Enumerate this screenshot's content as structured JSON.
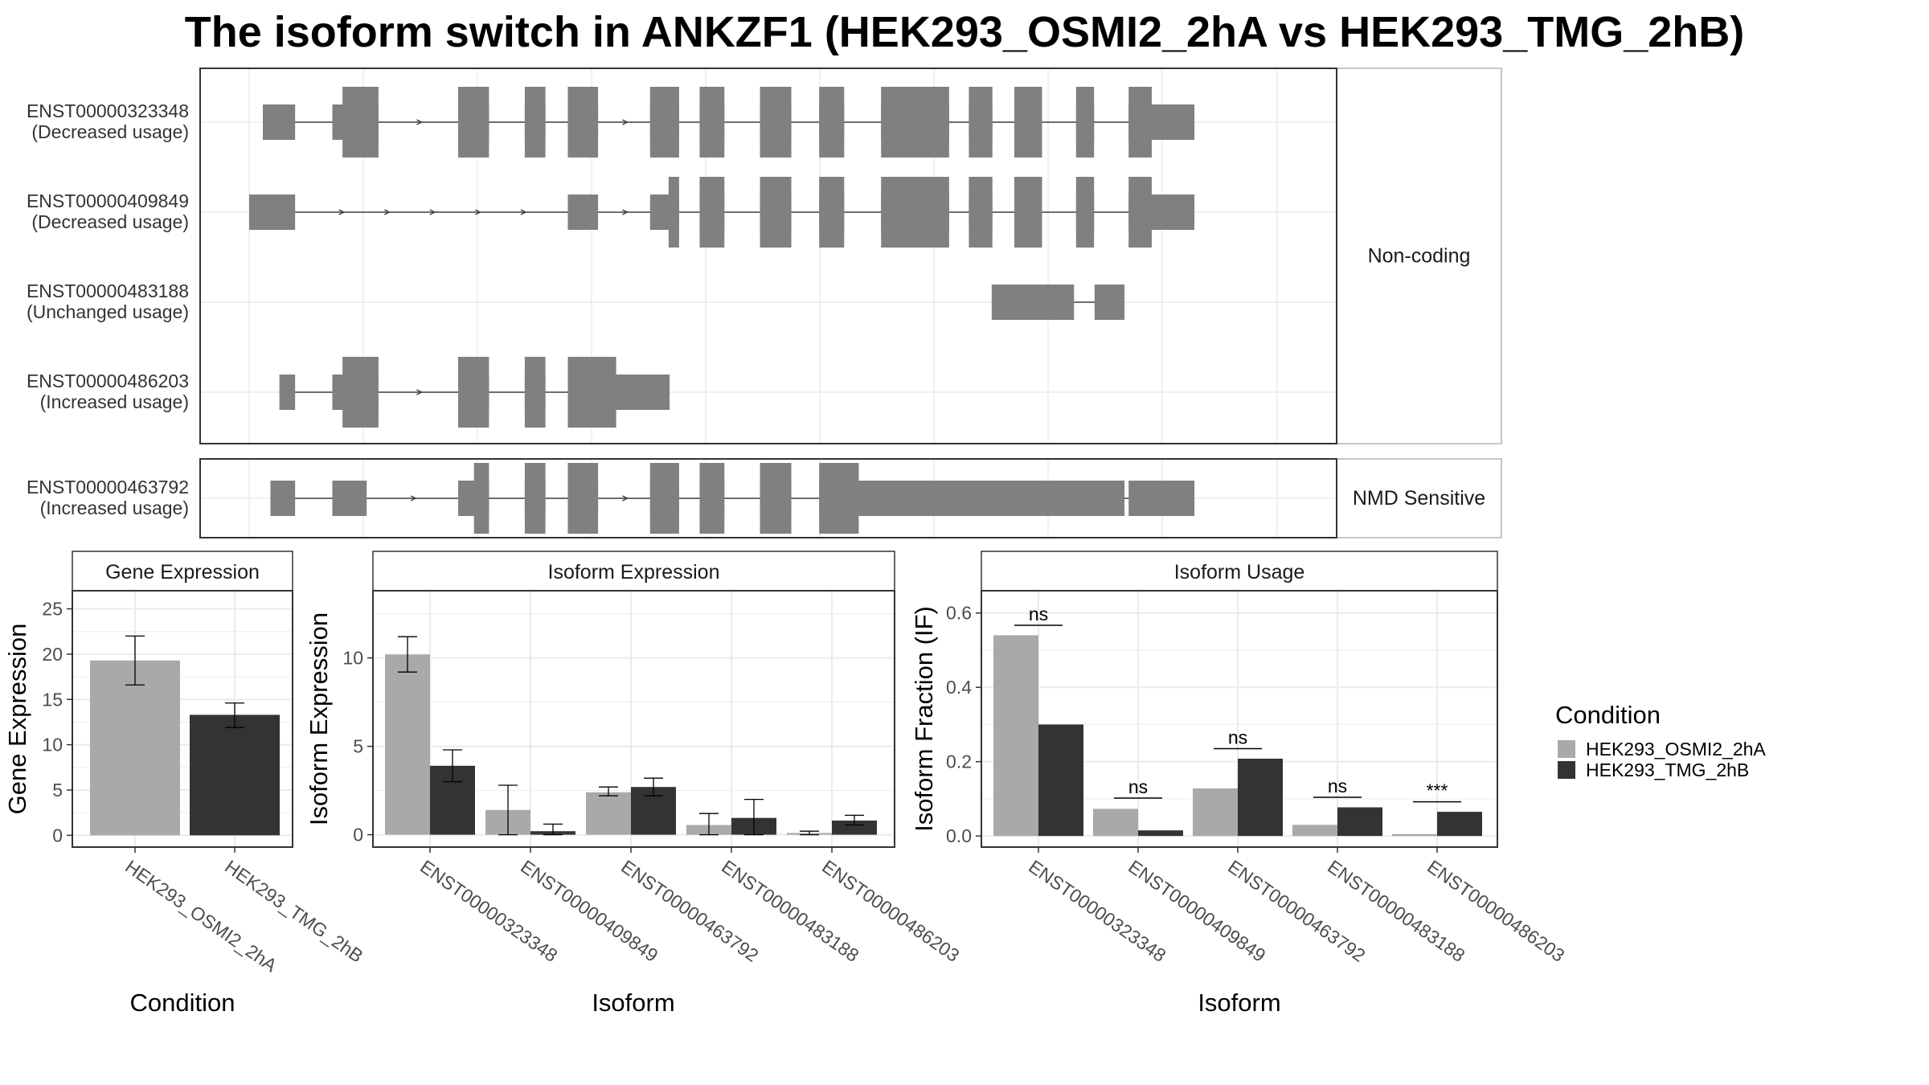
{
  "title": "The isoform switch in ANKZF1 (HEK293_OSMI2_2hA vs HEK293_TMG_2hB)",
  "colors": {
    "exon": "#808080",
    "intron": "#404040",
    "condition_1": "#a9a9a9",
    "condition_2": "#333333",
    "gridline": "#ebebeb",
    "panel_border": "#333333",
    "strip_fill": "#ffffff"
  },
  "structure": {
    "groups": [
      {
        "label": "Non-coding",
        "transcripts": [
          {
            "id": "ENST00000323348",
            "usage": "(Decreased usage)",
            "exons": [
              [
                0.0133,
                0.0447
              ],
              [
                0.0809,
                0.1258
              ],
              [
                0.2033,
                0.2333
              ],
              [
                0.2681,
                0.2882
              ],
              [
                0.31,
                0.3394
              ],
              [
                0.39,
                0.4182
              ],
              [
                0.4382,
                0.4623
              ],
              [
                0.4969,
                0.5274
              ],
              [
                0.5545,
                0.5788
              ],
              [
                0.6147,
                0.6809
              ],
              [
                0.7001,
                0.723
              ],
              [
                0.7443,
                0.7713
              ],
              [
                0.8044,
                0.8219
              ],
              [
                0.8555,
                0.9195
              ]
            ],
            "cds": [
              [
                0.0908,
                0.1258
              ],
              [
                0.2033,
                0.2333
              ],
              [
                0.2681,
                0.2882
              ],
              [
                0.31,
                0.3394
              ],
              [
                0.39,
                0.4182
              ],
              [
                0.4382,
                0.4623
              ],
              [
                0.4969,
                0.5274
              ],
              [
                0.5545,
                0.5788
              ],
              [
                0.6147,
                0.6809
              ],
              [
                0.7001,
                0.723
              ],
              [
                0.7443,
                0.7713
              ],
              [
                0.8044,
                0.8219
              ],
              [
                0.8555,
                0.878
              ]
            ]
          },
          {
            "id": "ENST00000409849",
            "usage": "(Decreased usage)",
            "exons": [
              [
                0.0,
                0.0447
              ],
              [
                0.31,
                0.3394
              ],
              [
                0.39,
                0.4182
              ],
              [
                0.4382,
                0.4623
              ],
              [
                0.4969,
                0.5274
              ],
              [
                0.5545,
                0.5788
              ],
              [
                0.6147,
                0.6809
              ],
              [
                0.7001,
                0.723
              ],
              [
                0.7443,
                0.7713
              ],
              [
                0.8044,
                0.8219
              ],
              [
                0.8555,
                0.9195
              ]
            ],
            "cds": [
              [
                0.408,
                0.4182
              ],
              [
                0.4382,
                0.4623
              ],
              [
                0.4969,
                0.5274
              ],
              [
                0.5545,
                0.5788
              ],
              [
                0.6147,
                0.6809
              ],
              [
                0.7001,
                0.723
              ],
              [
                0.7443,
                0.7713
              ],
              [
                0.8044,
                0.8219
              ],
              [
                0.8555,
                0.878
              ]
            ]
          },
          {
            "id": "ENST00000483188",
            "usage": "(Unchanged usage)",
            "exons": [
              [
                0.7223,
                0.8024
              ],
              [
                0.8224,
                0.8515
              ]
            ],
            "cds": []
          },
          {
            "id": "ENST00000486203",
            "usage": "(Increased usage)",
            "exons": [
              [
                0.0294,
                0.0447
              ],
              [
                0.0809,
                0.1258
              ],
              [
                0.2033,
                0.2333
              ],
              [
                0.2681,
                0.2882
              ],
              [
                0.31,
                0.409
              ]
            ],
            "cds": [
              [
                0.0908,
                0.1258
              ],
              [
                0.2033,
                0.2333
              ],
              [
                0.2681,
                0.2882
              ],
              [
                0.31,
                0.357
              ]
            ]
          }
        ]
      },
      {
        "label": "NMD Sensitive",
        "transcripts": [
          {
            "id": "ENST00000463792",
            "usage": "(Increased usage)",
            "exons": [
              [
                0.0207,
                0.0447
              ],
              [
                0.0809,
                0.1143
              ],
              [
                0.2033,
                0.2333
              ],
              [
                0.2681,
                0.2882
              ],
              [
                0.31,
                0.3394
              ],
              [
                0.39,
                0.4182
              ],
              [
                0.4382,
                0.4623
              ],
              [
                0.4969,
                0.5274
              ],
              [
                0.5545,
                0.8515
              ],
              [
                0.88,
                0.8981
              ],
              [
                0.8555,
                0.9195
              ]
            ],
            "cds": [
              [
                0.2187,
                0.2333
              ],
              [
                0.2681,
                0.2882
              ],
              [
                0.31,
                0.3394
              ],
              [
                0.39,
                0.4182
              ],
              [
                0.4382,
                0.4623
              ],
              [
                0.4969,
                0.5274
              ],
              [
                0.5545,
                0.593
              ]
            ]
          }
        ]
      }
    ]
  },
  "chart_data": [
    {
      "type": "bar",
      "title": "Gene Expression",
      "xlabel": "Condition",
      "ylabel": "Gene Expression",
      "categories": [
        "HEK293_OSMI2_2hA",
        "HEK293_TMG_2hB"
      ],
      "series": [
        {
          "name": "HEK293_OSMI2_2hA",
          "values": [
            19.3,
            null
          ],
          "error": [
            [
              16.6,
              22.0
            ],
            null
          ]
        },
        {
          "name": "HEK293_TMG_2hB",
          "values": [
            null,
            13.3
          ],
          "error": [
            null,
            [
              11.9,
              14.6
            ]
          ]
        }
      ],
      "ylim": [
        -1.3,
        27
      ],
      "yticks": [
        0,
        5,
        10,
        15,
        20,
        25
      ],
      "grid": true
    },
    {
      "type": "bar",
      "title": "Isoform Expression",
      "xlabel": "Isoform",
      "ylabel": "Isoform Expression",
      "categories": [
        "ENST00000323348",
        "ENST00000409849",
        "ENST00000463792",
        "ENST00000483188",
        "ENST00000486203"
      ],
      "series": [
        {
          "name": "HEK293_OSMI2_2hA",
          "values": [
            10.2,
            1.4,
            2.4,
            0.55,
            0.1
          ],
          "error": [
            [
              9.2,
              11.2
            ],
            [
              0.0,
              2.8
            ],
            [
              2.2,
              2.7
            ],
            [
              0.0,
              1.2
            ],
            [
              0.0,
              0.2
            ]
          ]
        },
        {
          "name": "HEK293_TMG_2hB",
          "values": [
            3.9,
            0.2,
            2.7,
            0.95,
            0.8
          ],
          "error": [
            [
              3.0,
              4.8
            ],
            [
              0.0,
              0.6
            ],
            [
              2.2,
              3.2
            ],
            [
              0.0,
              2.0
            ],
            [
              0.55,
              1.1
            ]
          ]
        }
      ],
      "ylim": [
        -0.7,
        13.8
      ],
      "yticks": [
        0,
        5,
        10
      ],
      "grid": true
    },
    {
      "type": "bar",
      "title": "Isoform Usage",
      "xlabel": "Isoform",
      "ylabel": "Isoform Fraction (IF)",
      "categories": [
        "ENST00000323348",
        "ENST00000409849",
        "ENST00000463792",
        "ENST00000483188",
        "ENST00000486203"
      ],
      "series": [
        {
          "name": "HEK293_OSMI2_2hA",
          "values": [
            0.54,
            0.073,
            0.128,
            0.03,
            0.005
          ]
        },
        {
          "name": "HEK293_TMG_2hB",
          "values": [
            0.3,
            0.015,
            0.208,
            0.077,
            0.065
          ]
        }
      ],
      "significance": [
        "ns",
        "ns",
        "ns",
        "ns",
        "***"
      ],
      "significance_y": [
        0.567,
        0.102,
        0.235,
        0.104,
        0.092
      ],
      "ylim": [
        -0.03,
        0.66
      ],
      "yticks": [
        0.0,
        0.2,
        0.4,
        0.6
      ],
      "ytick_labels": [
        "0.0",
        "0.2",
        "0.4",
        "0.6"
      ],
      "grid": true
    }
  ],
  "legend": {
    "title": "Condition",
    "placement": "right",
    "entries": [
      {
        "label": "HEK293_OSMI2_2hA",
        "color": "#a9a9a9"
      },
      {
        "label": "HEK293_TMG_2hB",
        "color": "#333333"
      }
    ]
  }
}
